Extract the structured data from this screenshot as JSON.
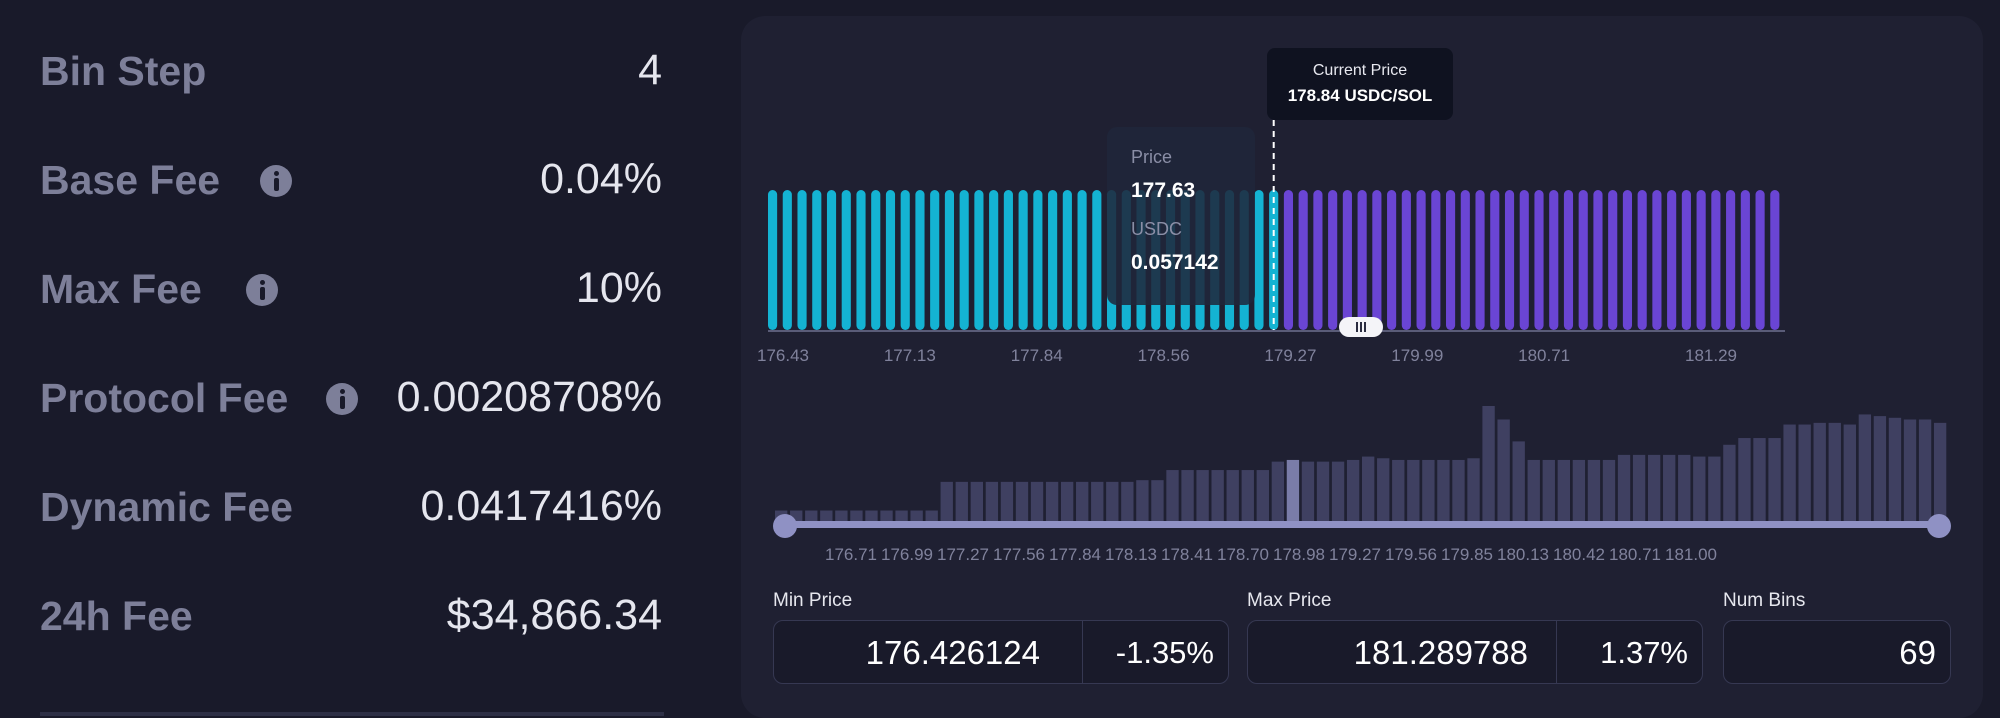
{
  "fees": {
    "bin_step": {
      "label": "Bin Step",
      "value": "4"
    },
    "base_fee": {
      "label": "Base Fee",
      "value": "0.04%"
    },
    "max_fee": {
      "label": "Max Fee",
      "value": "10%"
    },
    "protocol_fee": {
      "label": "Protocol Fee",
      "value": "0.00208708%"
    },
    "dynamic_fee": {
      "label": "Dynamic Fee",
      "value": "0.0417416%"
    },
    "day_fee": {
      "label": "24h Fee",
      "value": "$34,866.34"
    }
  },
  "current_price": {
    "label": "Current Price",
    "value": "178.84 USDC/SOL"
  },
  "hover_tooltip": {
    "price_label": "Price",
    "price_value": "177.63",
    "token_label": "USDC",
    "token_value": "0.057142"
  },
  "colors": {
    "usdc_bars": "#14b3d3",
    "sol_bars": "#6a45d4",
    "liquidity_bars": "#3f4061",
    "liquidity_highlight": "#7a7ca8",
    "range_track": "#8f91c4"
  },
  "chart_data": [
    {
      "type": "bar",
      "categories_labeled": [
        "176.43",
        "177.13",
        "177.84",
        "178.56",
        "179.27",
        "179.99",
        "180.71",
        "181.29"
      ],
      "bins": 69,
      "split_bin": 34,
      "series": [
        {
          "name": "USDC",
          "values": [
            1,
            1,
            1,
            1,
            1,
            1,
            1,
            1,
            1,
            1,
            1,
            1,
            1,
            1,
            1,
            1,
            1,
            1,
            1,
            1,
            1,
            1,
            1,
            1,
            1,
            1,
            1,
            1,
            1,
            1,
            1,
            1,
            1,
            1,
            1
          ]
        },
        {
          "name": "SOL",
          "values": [
            1,
            1,
            1,
            1,
            1,
            1,
            1,
            1,
            1,
            1,
            1,
            1,
            1,
            1,
            1,
            1,
            1,
            1,
            1,
            1,
            1,
            1,
            1,
            1,
            1,
            1,
            1,
            1,
            1,
            1,
            1,
            1,
            1,
            1
          ]
        }
      ]
    },
    {
      "type": "bar",
      "tick_labels": [
        "176.71",
        "176.99",
        "177.27",
        "177.56",
        "177.84",
        "178.13",
        "178.41",
        "178.70",
        "178.98",
        "179.27",
        "179.56",
        "179.85",
        "180.13",
        "180.42",
        "180.71",
        "181.00"
      ],
      "values": [
        8,
        8,
        8,
        8,
        8,
        8,
        8,
        8,
        8,
        8,
        8,
        25,
        25,
        25,
        25,
        25,
        25,
        25,
        25,
        25,
        25,
        25,
        25,
        25,
        26,
        26,
        32,
        32,
        32,
        32,
        32,
        32,
        32,
        37,
        38,
        37,
        37,
        37,
        38,
        40,
        39,
        38,
        38,
        38,
        38,
        38,
        39,
        70,
        62,
        49,
        38,
        38,
        38,
        38,
        38,
        38,
        41,
        41,
        41,
        41,
        41,
        40,
        40,
        47,
        51,
        51,
        51,
        59,
        59,
        60,
        60,
        59,
        65,
        64,
        63,
        62,
        62,
        60
      ],
      "highlight_index": 34
    }
  ],
  "range": {
    "min_price_label": "Min Price",
    "min_price_value": "176.426124",
    "min_price_pct": "-1.35%",
    "max_price_label": "Max Price",
    "max_price_value": "181.289788",
    "max_price_pct": "1.37%",
    "num_bins_label": "Num Bins",
    "num_bins_value": "69"
  }
}
